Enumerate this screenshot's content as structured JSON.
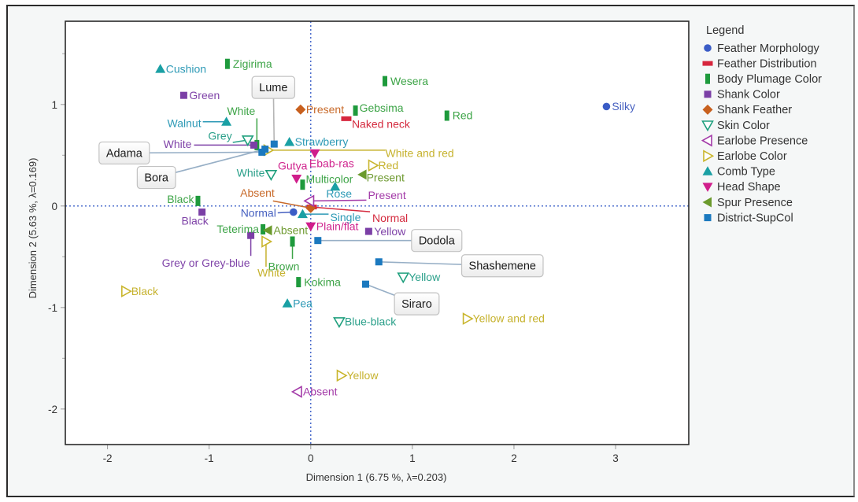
{
  "chart_data": {
    "type": "scatter",
    "title": "",
    "xlabel": "Dimension 1  (6.75 %, λ=0.203)",
    "ylabel": "Dimension 2  (5.63 %, λ=0.169)",
    "xlim": [
      -2.415,
      3.72
    ],
    "ylim": [
      -2.35,
      1.82
    ],
    "xticks": [
      -2,
      -1,
      0,
      1,
      2,
      3
    ],
    "xtick_labels": [
      "-2",
      "-1",
      "0",
      "1",
      "2",
      "3"
    ],
    "yticks": [
      1,
      0,
      -1,
      -2
    ],
    "ytick_labels": [
      "1",
      "0",
      "-1",
      "-2"
    ],
    "yticks_minor": [
      1.5,
      0.5,
      -0.5,
      -1.5
    ],
    "grid": false,
    "reference_lines": {
      "x": 0,
      "y": 0,
      "style": "dotted",
      "color": "#3F63C8"
    },
    "legend": {
      "title": "Legend",
      "placement": "right"
    },
    "series": [
      {
        "name": "Feather Morphology",
        "marker": "circle",
        "color": "#3A5CC6",
        "label_color": "#4660C0",
        "points": [
          {
            "label": "Silky",
            "x": 2.91,
            "y": 0.98
          },
          {
            "label": "Normal",
            "x": -0.17,
            "y": -0.06
          }
        ]
      },
      {
        "name": "Feather Distribution",
        "marker": "hbar",
        "color": "#D7263D",
        "label_color": "#D42A3E",
        "points": [
          {
            "label": "Naked neck",
            "x": 0.35,
            "y": 0.86
          },
          {
            "label": "Normal",
            "x": 0.01,
            "y": -0.01
          }
        ]
      },
      {
        "name": "Body Plumage Color",
        "marker": "vbar",
        "color": "#1E9A3C",
        "label_color": "#3DA447",
        "points": [
          {
            "label": "Zigirima",
            "x": -0.82,
            "y": 1.4
          },
          {
            "label": "Wesera",
            "x": 0.73,
            "y": 1.23
          },
          {
            "label": "Gebsima",
            "x": 0.44,
            "y": 0.94
          },
          {
            "label": "Red",
            "x": 1.34,
            "y": 0.89
          },
          {
            "label": "White",
            "x": -0.53,
            "y": 0.6
          },
          {
            "label": "Multicolor",
            "x": -0.08,
            "y": 0.21
          },
          {
            "label": "Black",
            "x": -1.11,
            "y": 0.05
          },
          {
            "label": "Teterima",
            "x": -0.47,
            "y": -0.23
          },
          {
            "label": "Brown",
            "x": -0.18,
            "y": -0.35
          },
          {
            "label": "Kokima",
            "x": -0.12,
            "y": -0.75
          }
        ]
      },
      {
        "name": "Shank Color",
        "marker": "square",
        "color": "#7B3FA6",
        "label_color": "#7F43A8",
        "points": [
          {
            "label": "Green",
            "x": -1.25,
            "y": 1.09
          },
          {
            "label": "White",
            "x": -0.56,
            "y": 0.6
          },
          {
            "label": "Black",
            "x": -1.07,
            "y": -0.06
          },
          {
            "label": "Grey or Grey-blue",
            "x": -0.59,
            "y": -0.29
          },
          {
            "label": "Yellow",
            "x": 0.57,
            "y": -0.25
          }
        ]
      },
      {
        "name": "Shank Feather",
        "marker": "diamond",
        "color": "#C8601E",
        "label_color": "#C86A2A",
        "points": [
          {
            "label": "Present",
            "x": -0.1,
            "y": 0.95
          },
          {
            "label": "Absent",
            "x": 0.0,
            "y": -0.02
          }
        ]
      },
      {
        "name": "Skin Color",
        "marker": "tri-down-open",
        "color": "#20A07E",
        "label_color": "#2BA08A",
        "points": [
          {
            "label": "Grey",
            "x": -0.62,
            "y": 0.65
          },
          {
            "label": "White",
            "x": -0.39,
            "y": 0.31
          },
          {
            "label": "Yellow",
            "x": 0.91,
            "y": -0.7
          },
          {
            "label": "Blue-black",
            "x": 0.28,
            "y": -1.14
          }
        ]
      },
      {
        "name": "Earlobe Presence",
        "marker": "tri-left-open",
        "color": "#A33AA8",
        "label_color": "#A33AA8",
        "points": [
          {
            "label": "Present",
            "x": -0.01,
            "y": 0.05
          },
          {
            "label": "Absent",
            "x": -0.13,
            "y": -1.83
          }
        ]
      },
      {
        "name": "Earlobe Color",
        "marker": "tri-right-open",
        "color": "#C9B52C",
        "label_color": "#C6B22E",
        "points": [
          {
            "label": "White and red",
            "x": -0.42,
            "y": 0.55
          },
          {
            "label": "Red",
            "x": 0.61,
            "y": 0.4
          },
          {
            "label": "White",
            "x": -0.44,
            "y": -0.35
          },
          {
            "label": "Black",
            "x": -1.82,
            "y": -0.84
          },
          {
            "label": "Yellow and red",
            "x": 1.54,
            "y": -1.11
          },
          {
            "label": "Yellow",
            "x": 0.3,
            "y": -1.67
          }
        ]
      },
      {
        "name": "Comb Type",
        "marker": "tri-up",
        "color": "#1AA0A4",
        "label_color": "#2E9AB6",
        "points": [
          {
            "label": "Cushion",
            "x": -1.48,
            "y": 1.35
          },
          {
            "label": "Walnut",
            "x": -0.83,
            "y": 0.83
          },
          {
            "label": "Strawberry",
            "x": -0.21,
            "y": 0.63
          },
          {
            "label": "Rose",
            "x": 0.24,
            "y": 0.19
          },
          {
            "label": "Single",
            "x": -0.08,
            "y": -0.08
          },
          {
            "label": "Pea",
            "x": -0.23,
            "y": -0.96
          }
        ]
      },
      {
        "name": "Head Shape",
        "marker": "tri-down",
        "color": "#D01E8B",
        "label_color": "#D0258E",
        "points": [
          {
            "label": "Ebab-ras",
            "x": 0.04,
            "y": 0.52
          },
          {
            "label": "Gutya",
            "x": -0.14,
            "y": 0.27
          },
          {
            "label": "Plain/flat",
            "x": 0.0,
            "y": -0.2
          }
        ]
      },
      {
        "name": "Spur Presence",
        "marker": "tri-left",
        "color": "#6B9A2C",
        "label_color": "#6E9A30",
        "points": [
          {
            "label": "Present",
            "x": 0.51,
            "y": 0.31
          },
          {
            "label": "Absent",
            "x": -0.42,
            "y": -0.24
          }
        ]
      },
      {
        "name": "District-SupCol",
        "marker": "square",
        "color": "#1B79BF",
        "label_color": "#1A1A1A",
        "supplementary": true,
        "points": [
          {
            "label": "Lume",
            "x": -0.36,
            "y": 0.61
          },
          {
            "label": "Adama",
            "x": -0.48,
            "y": 0.53
          },
          {
            "label": "Bora",
            "x": -0.45,
            "y": 0.56
          },
          {
            "label": "Dodola",
            "x": 0.07,
            "y": -0.34
          },
          {
            "label": "Shashemene",
            "x": 0.67,
            "y": -0.55
          },
          {
            "label": "Siraro",
            "x": 0.54,
            "y": -0.77
          }
        ]
      }
    ]
  }
}
